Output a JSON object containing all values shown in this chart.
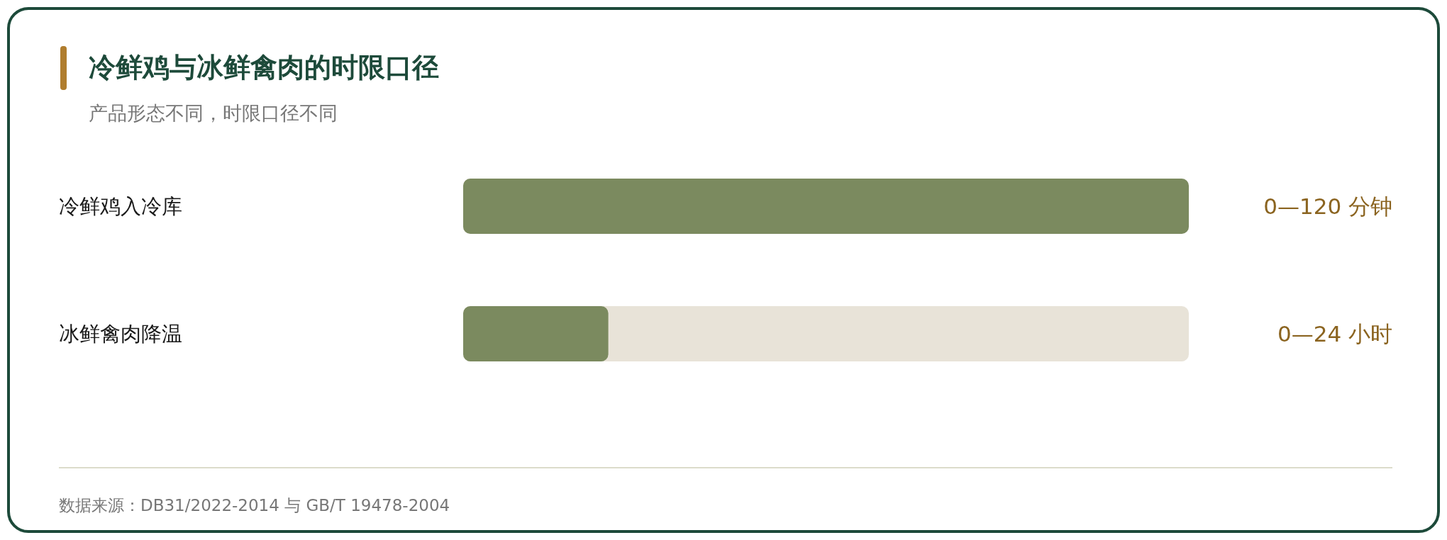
{
  "chart_data": {
    "type": "bar",
    "orientation": "horizontal",
    "title": "冷鲜鸡与冰鲜禽肉的时限口径",
    "subtitle": "产品形态不同，时限口径不同",
    "categories": [
      "冷鲜鸡入冷库",
      "冰鲜禽肉降温"
    ],
    "values": [
      120,
      24
    ],
    "color": "#7b8a5f",
    "value_labels": [
      "0—120 分钟",
      "0—24 小时"
    ],
    "xlim": [
      0,
      120
    ],
    "tick_labels": "y",
    "annotations": [
      "数据来源：DB31/2022-2014 与 GB/T 19478-2004"
    ]
  }
}
